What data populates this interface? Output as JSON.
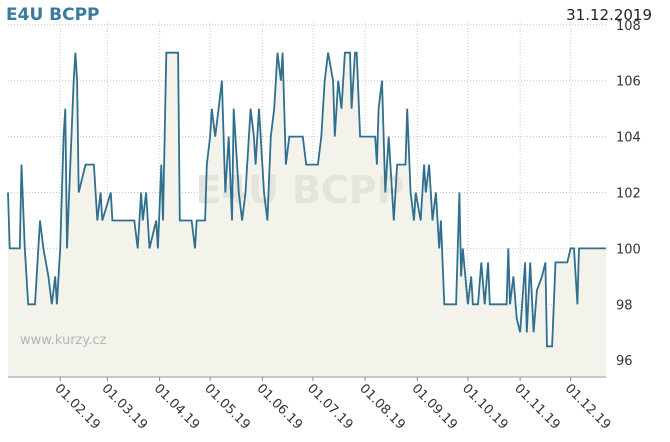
{
  "chart_data": {
    "type": "line",
    "title": "E4U BCPP",
    "date": "31.12.2019",
    "watermark": "E4U BCPP",
    "source": "www.kurzy.cz",
    "x": [
      "2019-01-01",
      "2019-01-02",
      "2019-01-08",
      "2019-01-09",
      "2019-01-11",
      "2019-01-13",
      "2019-01-17",
      "2019-01-20",
      "2019-01-22",
      "2019-01-25",
      "2019-01-27",
      "2019-01-29",
      "2019-01-30",
      "2019-02-01",
      "2019-02-03",
      "2019-02-04",
      "2019-02-05",
      "2019-02-07",
      "2019-02-09",
      "2019-02-10",
      "2019-02-11",
      "2019-02-12",
      "2019-02-16",
      "2019-02-21",
      "2019-02-23",
      "2019-02-25",
      "2019-02-26",
      "2019-03-03",
      "2019-03-04",
      "2019-03-17",
      "2019-03-19",
      "2019-03-21",
      "2019-03-22",
      "2019-03-24",
      "2019-03-26",
      "2019-03-30",
      "2019-03-31",
      "2019-04-02",
      "2019-04-03",
      "2019-04-05",
      "2019-04-12",
      "2019-04-13",
      "2019-04-20",
      "2019-04-22",
      "2019-04-23",
      "2019-04-28",
      "2019-04-29",
      "2019-05-01",
      "2019-05-02",
      "2019-05-04",
      "2019-05-06",
      "2019-05-08",
      "2019-05-10",
      "2019-05-12",
      "2019-05-14",
      "2019-05-15",
      "2019-05-18",
      "2019-05-20",
      "2019-05-22",
      "2019-05-25",
      "2019-05-27",
      "2019-05-28",
      "2019-05-30",
      "2019-05-31",
      "2019-06-02",
      "2019-06-04",
      "2019-06-06",
      "2019-06-08",
      "2019-06-10",
      "2019-06-12",
      "2019-06-13",
      "2019-06-15",
      "2019-06-17",
      "2019-06-25",
      "2019-06-27",
      "2019-07-04",
      "2019-07-06",
      "2019-07-08",
      "2019-07-10",
      "2019-07-13",
      "2019-07-14",
      "2019-07-16",
      "2019-07-18",
      "2019-07-20",
      "2019-07-23",
      "2019-07-24",
      "2019-07-26",
      "2019-07-27",
      "2019-07-29",
      "2019-08-07",
      "2019-08-08",
      "2019-08-09",
      "2019-08-11",
      "2019-08-13",
      "2019-08-15",
      "2019-08-17",
      "2019-08-18",
      "2019-08-20",
      "2019-08-25",
      "2019-08-26",
      "2019-08-28",
      "2019-08-30",
      "2019-08-31",
      "2019-09-03",
      "2019-09-05",
      "2019-09-06",
      "2019-09-08",
      "2019-09-10",
      "2019-09-12",
      "2019-09-14",
      "2019-09-15",
      "2019-09-17",
      "2019-09-24",
      "2019-09-26",
      "2019-09-27",
      "2019-09-28",
      "2019-10-01",
      "2019-10-03",
      "2019-10-04",
      "2019-10-07",
      "2019-10-09",
      "2019-10-11",
      "2019-10-13",
      "2019-10-14",
      "2019-10-24",
      "2019-10-25",
      "2019-10-26",
      "2019-10-28",
      "2019-10-30",
      "2019-11-01",
      "2019-11-04",
      "2019-11-05",
      "2019-11-07",
      "2019-11-09",
      "2019-11-11",
      "2019-11-14",
      "2019-11-16",
      "2019-11-17",
      "2019-11-20",
      "2019-11-22",
      "2019-11-26",
      "2019-11-29",
      "2019-12-01",
      "2019-12-03",
      "2019-12-05",
      "2019-12-06",
      "2019-12-22"
    ],
    "series": [
      {
        "name": "E4U BCPP",
        "color": "#2f6f8f",
        "fill": "#f3f3ec",
        "values": [
          102,
          100,
          100,
          103,
          100,
          98,
          98,
          101,
          100,
          99,
          98,
          99,
          98,
          100,
          104,
          105,
          100,
          103,
          106,
          107,
          106,
          102,
          103,
          103,
          101,
          102,
          101,
          102,
          101,
          101,
          100,
          102,
          101,
          102,
          100,
          101,
          100,
          103,
          101,
          107,
          107,
          101,
          101,
          100,
          101,
          101,
          103,
          104,
          105,
          104,
          105,
          106,
          102,
          104,
          101,
          105,
          102,
          101,
          102,
          105,
          104,
          103,
          105,
          104,
          102,
          101,
          104,
          105,
          107,
          106,
          107,
          103,
          104,
          104,
          103,
          103,
          104,
          106,
          107,
          106,
          104,
          106,
          105,
          107,
          107,
          105,
          107,
          107,
          104,
          104,
          103,
          105,
          106,
          102,
          104,
          102,
          101,
          103,
          103,
          105,
          102,
          101,
          102,
          101,
          103,
          102,
          103,
          101,
          102,
          100,
          101,
          98,
          98,
          102,
          99,
          100,
          98,
          99,
          98,
          98,
          99.5,
          98,
          99.5,
          98,
          98,
          100,
          98,
          99,
          97.5,
          97,
          99.5,
          97,
          99.5,
          97,
          98.5,
          99,
          99.5,
          96.5,
          96.5,
          99.5,
          99.5,
          99.5,
          100,
          100,
          98,
          100,
          100
        ]
      }
    ],
    "xlim": [
      "2019-01-01",
      "2019-12-22"
    ],
    "xticks": [
      {
        "value": "2019-02-01",
        "label": "01.02.19"
      },
      {
        "value": "2019-03-01",
        "label": "01.03.19"
      },
      {
        "value": "2019-04-01",
        "label": "01.04.19"
      },
      {
        "value": "2019-05-01",
        "label": "01.05.19"
      },
      {
        "value": "2019-06-01",
        "label": "01.06.19"
      },
      {
        "value": "2019-07-01",
        "label": "01.07.19"
      },
      {
        "value": "2019-08-01",
        "label": "01.08.19"
      },
      {
        "value": "2019-09-01",
        "label": "01.09.19"
      },
      {
        "value": "2019-10-01",
        "label": "01.10.19"
      },
      {
        "value": "2019-11-01",
        "label": "01.11.19"
      },
      {
        "value": "2019-12-01",
        "label": "01.12.19"
      }
    ],
    "ylim": [
      95.4,
      108.1
    ],
    "yticks": [
      96,
      98,
      100,
      102,
      104,
      106,
      108
    ],
    "grid": true
  }
}
